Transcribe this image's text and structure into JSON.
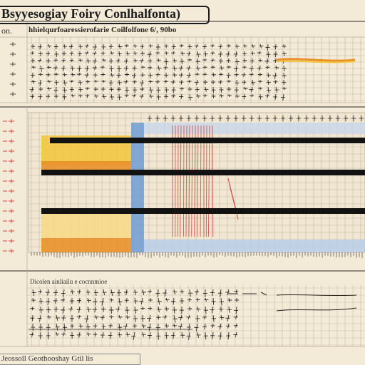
{
  "header": {
    "title": "Bsyyesogiay Foiry Conlhalfonta)",
    "subtitle": "hhielqurfoaressierofarie Coilfolfone 6/, 90bo",
    "margin_label": "on."
  },
  "lower_panel": {
    "caption": "Dicolen ainliailu e cocnnmioe"
  },
  "footer": {
    "text": "Jeossoll Geothooshay Gtil lis"
  },
  "colors": {
    "paper": "#f4ead8",
    "grid": "#b9ad98",
    "ink": "#2a2620",
    "red": "#d0463c",
    "blue": "#6f9bd2",
    "yellow": "#f3c43a",
    "orange": "#e9902a",
    "black_band": "#121212"
  }
}
